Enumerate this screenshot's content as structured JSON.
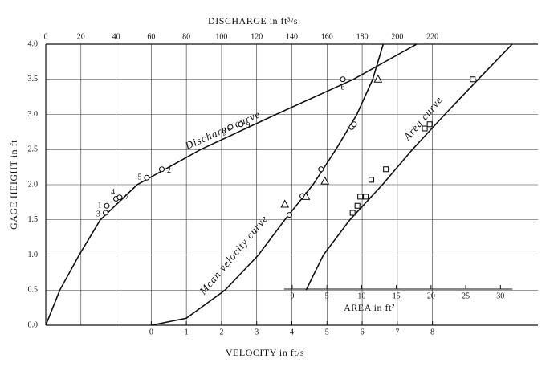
{
  "chart_data": {
    "type": "line",
    "y_label": "GAGE HEIGHT in ft",
    "ylim": [
      0,
      4
    ],
    "yticks": [
      {
        "value": 0,
        "label": "0.0"
      },
      {
        "value": 0.5,
        "label": "0.5"
      },
      {
        "value": 1,
        "label": "1.0"
      },
      {
        "value": 1.5,
        "label": "1.5"
      },
      {
        "value": 2,
        "label": "2.0"
      },
      {
        "value": 2.5,
        "label": "2.5"
      },
      {
        "value": 3,
        "label": "3.0"
      },
      {
        "value": 3.5,
        "label": "3.5"
      },
      {
        "value": 4,
        "label": "4.0"
      }
    ],
    "grid": true,
    "axes": {
      "discharge": {
        "label": "DISCHARGE in ft³/s",
        "xlim": [
          0,
          280
        ],
        "xticks": [
          0,
          20,
          40,
          60,
          80,
          100,
          120,
          140,
          160,
          180,
          200,
          220
        ]
      },
      "velocity": {
        "label": "VELOCITY in ft/s",
        "xlim": [
          -3,
          11
        ],
        "xticks": [
          0,
          1,
          2,
          3,
          4,
          5,
          6,
          7,
          8
        ]
      },
      "area": {
        "label": "AREA in ft²",
        "xlim": [
          -35.5,
          35.4
        ],
        "xticks": [
          0,
          5,
          10,
          15,
          20,
          25,
          30
        ]
      }
    },
    "series": [
      {
        "name": "Discharge curve",
        "axis": "discharge",
        "color": "#111111",
        "curve": {
          "x": [
            0,
            8,
            19,
            31,
            52,
            88,
            131,
            175,
            211
          ],
          "y": [
            0,
            0.5,
            1,
            1.5,
            2,
            2.5,
            3,
            3.5,
            4
          ]
        },
        "points": [
          {
            "marker": "circle",
            "x": [
              34.7,
              34,
              40,
              42,
              57.5,
              66,
              105,
              111,
              169
            ],
            "y": [
              1.7,
              1.6,
              1.8,
              1.82,
              2.1,
              2.22,
              2.82,
              2.86,
              3.5
            ],
            "labels": [
              "1",
              "3",
              "4",
              "7",
              "5",
              "2",
              "8",
              "9",
              "6"
            ]
          }
        ]
      },
      {
        "name": "Mean velocity curve",
        "axis": "velocity",
        "color": "#111111",
        "curve": {
          "x": [
            0,
            1,
            2.1,
            3.05,
            3.8,
            4.6,
            5.25,
            5.85,
            6.3,
            6.6
          ],
          "y": [
            0,
            0.1,
            0.5,
            1,
            1.5,
            2,
            2.5,
            3,
            3.5,
            4
          ]
        },
        "points": [
          {
            "marker": "circle",
            "x": [
              3.93,
              4.3,
              4.83,
              5.7,
              5.77
            ],
            "y": [
              1.57,
              1.84,
              2.22,
              2.82,
              2.86
            ]
          },
          {
            "marker": "triangle",
            "x": [
              3.8,
              4.4,
              4.94,
              6.45
            ],
            "y": [
              1.72,
              1.83,
              2.05,
              3.5
            ]
          }
        ]
      },
      {
        "name": "Area curve",
        "axis": "area",
        "color": "#111111",
        "curve": {
          "x": [
            2,
            4.5,
            8.3,
            13,
            17.3,
            22,
            26.8,
            31.7
          ],
          "y": [
            0.5,
            1,
            1.5,
            2,
            2.5,
            3,
            3.5,
            4
          ]
        },
        "points": [
          {
            "marker": "square",
            "x": [
              8.7,
              9.4,
              9.8,
              10.6,
              11.4,
              13.5,
              19.1,
              19.8,
              26
            ],
            "y": [
              1.6,
              1.7,
              1.83,
              1.83,
              2.07,
              2.22,
              2.8,
              2.86,
              3.5
            ]
          }
        ]
      }
    ]
  }
}
